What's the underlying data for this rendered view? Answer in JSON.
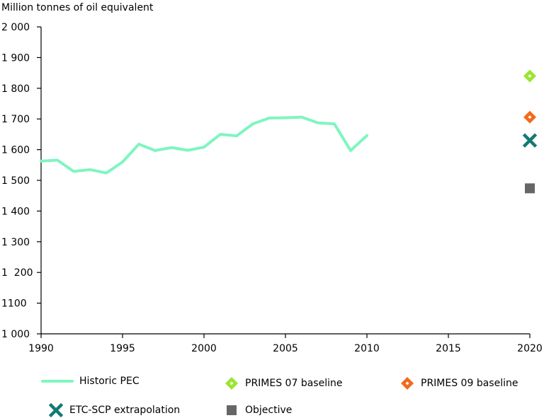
{
  "chart_data": {
    "type": "line",
    "ylabel": "Million tonnes of oil equivalent",
    "xlim": [
      1990,
      2020
    ],
    "ylim": [
      1000,
      2000
    ],
    "x_ticks": [
      1990,
      1995,
      2000,
      2005,
      2010,
      2015,
      2020
    ],
    "x_tick_labels": [
      "1990",
      "1995",
      "2000",
      "2005",
      "2010",
      "2015",
      "2020"
    ],
    "y_ticks": [
      1000,
      1100,
      1200,
      1300,
      1400,
      1500,
      1600,
      1700,
      1800,
      1900,
      2000
    ],
    "y_tick_labels": [
      "1 000",
      "1100",
      "1  200",
      "1 300",
      "1 400",
      "1 500",
      "1 600",
      "1 700",
      "1 800",
      "1 900",
      "2 000"
    ],
    "grid": false,
    "legend_position": "bottom",
    "series": [
      {
        "name": "Historic PEC",
        "kind": "line",
        "color": "#7ff5c0",
        "x": [
          1990,
          1991,
          1992,
          1993,
          1994,
          1995,
          1996,
          1997,
          1998,
          1999,
          2000,
          2001,
          2002,
          2003,
          2004,
          2005,
          2006,
          2007,
          2008,
          2009,
          2010
        ],
        "values": [
          1563,
          1566,
          1529,
          1535,
          1524,
          1560,
          1618,
          1597,
          1607,
          1598,
          1608,
          1650,
          1645,
          1684,
          1703,
          1704,
          1706,
          1687,
          1684,
          1597,
          1646
        ]
      },
      {
        "name": "PRIMES 07 baseline",
        "kind": "marker",
        "marker": "diamond",
        "color": "#99e62e",
        "x": [
          2020
        ],
        "values": [
          1840
        ]
      },
      {
        "name": "PRIMES 09 baseline",
        "kind": "marker",
        "marker": "diamond",
        "color": "#f26a1b",
        "x": [
          2020
        ],
        "values": [
          1706
        ]
      },
      {
        "name": "ETC-SCP extrapolation",
        "kind": "marker",
        "marker": "cross",
        "color": "#137a74",
        "x": [
          2020
        ],
        "values": [
          1630
        ]
      },
      {
        "name": "Objective",
        "kind": "marker",
        "marker": "square",
        "color": "#666666",
        "x": [
          2020
        ],
        "values": [
          1474
        ]
      }
    ]
  }
}
